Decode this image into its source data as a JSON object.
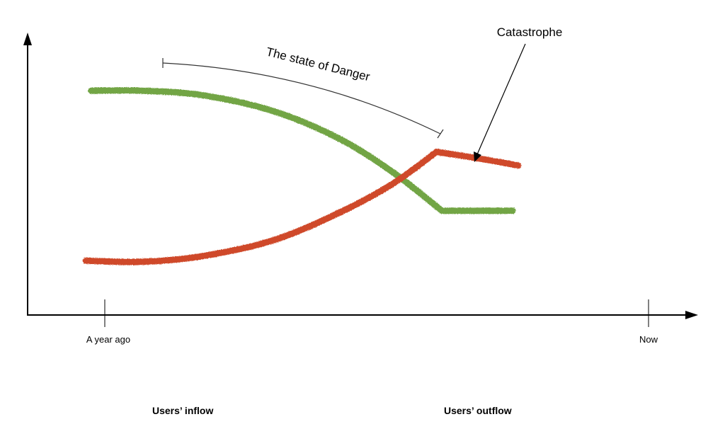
{
  "chart_data": {
    "type": "line",
    "title": "",
    "xlabel": "",
    "ylabel": "",
    "xlim": [
      0,
      1
    ],
    "ylim": [
      0,
      1
    ],
    "x_ticks": [
      {
        "value": 0,
        "label": "A year ago"
      },
      {
        "value": 1,
        "label": "Now"
      }
    ],
    "grid": false,
    "legend_position": "bottom",
    "series": [
      {
        "name": "Users’ inflow",
        "color": "#72a545",
        "points": [
          [
            -0.025,
            0.99
          ],
          [
            0.07,
            0.99
          ],
          [
            0.18,
            0.97
          ],
          [
            0.31,
            0.9
          ],
          [
            0.43,
            0.78
          ],
          [
            0.53,
            0.63
          ],
          [
            0.62,
            0.46
          ],
          [
            0.75,
            0.46
          ]
        ]
      },
      {
        "name": "Users’ outflow",
        "color": "#cf4a2c",
        "points": [
          [
            -0.035,
            0.24
          ],
          [
            0.07,
            0.235
          ],
          [
            0.18,
            0.26
          ],
          [
            0.31,
            0.33
          ],
          [
            0.43,
            0.45
          ],
          [
            0.53,
            0.58
          ],
          [
            0.61,
            0.72
          ],
          [
            0.76,
            0.66
          ]
        ]
      }
    ],
    "annotations": [
      {
        "name": "danger-range",
        "text": "The state of Danger"
      },
      {
        "name": "catastrophe",
        "text": "Catastrophe"
      }
    ]
  }
}
